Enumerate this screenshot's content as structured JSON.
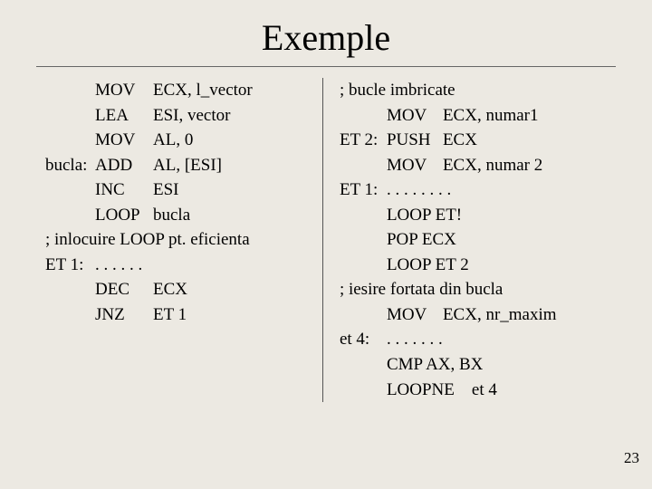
{
  "title": "Exemple",
  "page_number": "23",
  "colors": {
    "background": "#ece9e2",
    "text": "#000000",
    "rule": "#666666",
    "divider": "#555555"
  },
  "typography": {
    "title_fontsize_pt": 30,
    "body_fontsize_pt": 14,
    "font_family": "Times New Roman"
  },
  "left": {
    "lines": [
      {
        "label": "",
        "op": "MOV",
        "arg": "ECX, l_vector"
      },
      {
        "label": "",
        "op": "LEA",
        "arg": "ESI, vector"
      },
      {
        "label": "",
        "op": "MOV",
        "arg": "AL, 0"
      },
      {
        "label": "bucla:",
        "op": "ADD",
        "arg": "AL, [ESI]"
      },
      {
        "label": "",
        "op": "INC",
        "arg": "ESI"
      },
      {
        "label": "",
        "op": "LOOP",
        "arg": "bucla"
      }
    ],
    "comment": "; inlocuire LOOP pt. eficienta",
    "lines2": [
      {
        "label": "ET 1:",
        "op": ". . . . . .",
        "arg": ""
      },
      {
        "label": "",
        "op": "DEC",
        "arg": "ECX"
      },
      {
        "label": "",
        "op": "JNZ",
        "arg": "ET 1"
      }
    ]
  },
  "right": {
    "comment_top": "; bucle imbricate",
    "lines": [
      {
        "label": "",
        "op": "MOV",
        "arg": "ECX, numar1"
      },
      {
        "label": "ET 2:",
        "op": "PUSH",
        "arg": "ECX"
      },
      {
        "label": "",
        "op": "MOV",
        "arg": "ECX, numar 2"
      },
      {
        "label": "ET 1:",
        "op": ". . . . . . . .",
        "arg": ""
      },
      {
        "label": "",
        "op": "LOOP ET!",
        "arg": ""
      },
      {
        "label": "",
        "op": "POP ECX",
        "arg": ""
      },
      {
        "label": "",
        "op": "LOOP ET 2",
        "arg": ""
      }
    ],
    "comment_mid": "; iesire fortata din bucla",
    "lines2": [
      {
        "label": "",
        "op": "MOV",
        "arg": "ECX, nr_maxim"
      },
      {
        "label": "et 4:",
        "op": ". . . . . . .",
        "arg": ""
      },
      {
        "label": "",
        "op": "CMP AX, BX",
        "arg": ""
      },
      {
        "label": "",
        "op": "LOOPNE    et 4",
        "arg": ""
      }
    ]
  }
}
